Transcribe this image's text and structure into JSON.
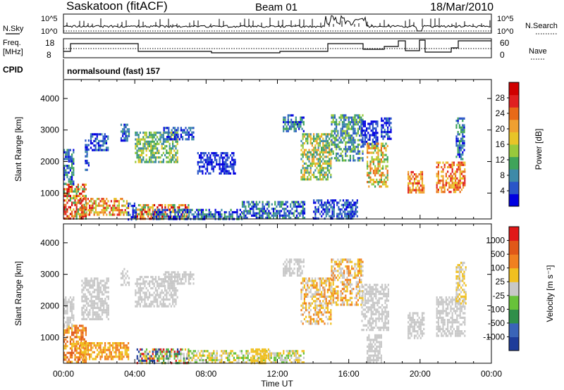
{
  "header": {
    "station": "Saskatoon (fitACF)",
    "beam": "Beam 01",
    "date": "18/Mar/2010"
  },
  "status_panels": {
    "nsky_label": "N.Sky",
    "nsearch_label": "N.Search",
    "noise_ticks": [
      "10^5",
      "10^0"
    ],
    "freq_label_1": "Freq.",
    "freq_label_2": "[MHz]",
    "freq_ticks": [
      "18",
      "8"
    ],
    "nave_label": "Nave",
    "nave_ticks": [
      "60",
      "0"
    ],
    "cpid_label": "CPID",
    "cpid_value": "normalsound (fast) 157"
  },
  "chart_data": [
    {
      "type": "heatmap",
      "title": "Power",
      "ylabel": "Slant Range [km]",
      "xlabel": "",
      "ylim": [
        180,
        4600
      ],
      "yticks": [
        1000,
        2000,
        3000,
        4000
      ],
      "xlim_hours": [
        0,
        24
      ],
      "xticks": [
        "00:00",
        "04:00",
        "08:00",
        "12:00",
        "16:00",
        "20:00",
        "00:00"
      ],
      "colorbar": {
        "label": "Power [dB]",
        "ticks": [
          "28",
          "24",
          "20",
          "16",
          "12",
          "8",
          "4"
        ],
        "colors": [
          "#0000e0",
          "#2a55c8",
          "#3e8aa8",
          "#3fa45a",
          "#98c93c",
          "#e8c428",
          "#f0a030",
          "#e86a18",
          "#e02020",
          "#d00000"
        ]
      },
      "regions": [
        {
          "t0": 0.0,
          "t1": 1.25,
          "r0": 220,
          "r1": 1300,
          "cls": [
            3,
            5,
            7,
            8,
            9
          ]
        },
        {
          "t0": 0.0,
          "t1": 0.6,
          "r0": 1300,
          "r1": 2400,
          "cls": [
            0,
            1,
            2,
            3
          ]
        },
        {
          "t0": 0.9,
          "t1": 3.6,
          "r0": 300,
          "r1": 850,
          "cls": [
            4,
            5,
            6,
            7,
            8
          ]
        },
        {
          "t0": 1.2,
          "t1": 1.45,
          "r0": 1700,
          "r1": 2700,
          "cls": [
            0,
            1,
            2
          ]
        },
        {
          "t0": 1.5,
          "t1": 2.5,
          "r0": 2350,
          "r1": 2900,
          "cls": [
            0,
            1,
            2
          ]
        },
        {
          "t0": 3.2,
          "t1": 3.7,
          "r0": 2650,
          "r1": 3200,
          "cls": [
            0,
            1,
            2,
            3
          ]
        },
        {
          "t0": 3.6,
          "t1": 4.05,
          "r0": 180,
          "r1": 700,
          "cls": [
            0,
            1,
            2
          ]
        },
        {
          "t0": 4.0,
          "t1": 6.4,
          "r0": 2000,
          "r1": 2950,
          "cls": [
            2,
            3,
            4,
            5
          ]
        },
        {
          "t0": 5.6,
          "t1": 7.3,
          "r0": 2700,
          "r1": 3100,
          "cls": [
            0,
            1,
            2
          ]
        },
        {
          "t0": 4.1,
          "t1": 7.0,
          "r0": 180,
          "r1": 650,
          "cls": [
            3,
            5,
            6,
            7,
            8,
            9
          ]
        },
        {
          "t0": 5.0,
          "t1": 10.0,
          "r0": 180,
          "r1": 500,
          "cls": [
            0,
            1,
            2,
            3
          ]
        },
        {
          "t0": 7.5,
          "t1": 9.6,
          "r0": 1600,
          "r1": 2300,
          "cls": [
            0,
            1
          ]
        },
        {
          "t0": 10.0,
          "t1": 13.5,
          "r0": 180,
          "r1": 750,
          "cls": [
            0,
            1,
            2,
            3
          ]
        },
        {
          "t0": 12.3,
          "t1": 13.5,
          "r0": 2950,
          "r1": 3500,
          "cls": [
            0,
            1,
            2,
            3
          ]
        },
        {
          "t0": 13.3,
          "t1": 15.0,
          "r0": 1400,
          "r1": 2900,
          "cls": [
            2,
            3,
            4,
            5,
            6
          ]
        },
        {
          "t0": 14.0,
          "t1": 16.5,
          "r0": 180,
          "r1": 800,
          "cls": [
            0,
            1,
            2
          ]
        },
        {
          "t0": 15.0,
          "t1": 16.8,
          "r0": 2000,
          "r1": 3500,
          "cls": [
            1,
            2,
            3,
            4
          ]
        },
        {
          "t0": 16.7,
          "t1": 17.6,
          "r0": 2500,
          "r1": 3300,
          "cls": [
            0,
            1
          ]
        },
        {
          "t0": 17.0,
          "t1": 18.2,
          "r0": 1200,
          "r1": 2600,
          "cls": [
            3,
            4,
            5,
            6,
            7
          ]
        },
        {
          "t0": 17.8,
          "t1": 18.4,
          "r0": 2700,
          "r1": 3400,
          "cls": [
            0,
            1,
            2
          ]
        },
        {
          "t0": 19.3,
          "t1": 20.2,
          "r0": 1000,
          "r1": 1700,
          "cls": [
            5,
            6,
            7,
            8
          ]
        },
        {
          "t0": 20.9,
          "t1": 22.5,
          "r0": 1050,
          "r1": 2000,
          "cls": [
            5,
            6,
            7,
            8
          ]
        },
        {
          "t0": 22.0,
          "t1": 22.5,
          "r0": 2100,
          "r1": 3400,
          "cls": [
            0,
            1,
            2,
            3
          ]
        }
      ]
    },
    {
      "type": "heatmap",
      "title": "Velocity",
      "ylabel": "Slant Range [km]",
      "xlabel": "Time UT",
      "ylim": [
        180,
        4600
      ],
      "yticks": [
        1000,
        2000,
        3000,
        4000
      ],
      "xlim_hours": [
        0,
        24
      ],
      "xticks": [
        "00:00",
        "04:00",
        "08:00",
        "12:00",
        "16:00",
        "20:00",
        "00:00"
      ],
      "colorbar": {
        "label": "Velocity [m s⁻¹]",
        "ticks": [
          "1000",
          "500",
          "100",
          "25",
          "-25",
          "-100",
          "-500",
          "-1000"
        ],
        "colors": [
          "#1e3c9a",
          "#3a64b8",
          "#2f8f4a",
          "#68c23a",
          "#c8c8c8",
          "#f0c020",
          "#f08020",
          "#e05818",
          "#e01818"
        ]
      },
      "regions": [
        {
          "t0": 0.0,
          "t1": 1.3,
          "r0": 220,
          "r1": 1400,
          "cls": [
            5,
            6,
            7
          ]
        },
        {
          "t0": 0.9,
          "t1": 3.6,
          "r0": 300,
          "r1": 850,
          "cls": [
            5,
            6
          ]
        },
        {
          "t0": 0.0,
          "t1": 0.6,
          "r0": 1300,
          "r1": 2300,
          "cls": [
            4
          ]
        },
        {
          "t0": 1.0,
          "t1": 2.5,
          "r0": 1600,
          "r1": 2900,
          "cls": [
            4
          ]
        },
        {
          "t0": 3.2,
          "t1": 3.7,
          "r0": 2650,
          "r1": 3200,
          "cls": [
            4
          ]
        },
        {
          "t0": 4.0,
          "t1": 6.4,
          "r0": 2000,
          "r1": 2950,
          "cls": [
            4
          ]
        },
        {
          "t0": 5.6,
          "t1": 7.3,
          "r0": 2700,
          "r1": 3100,
          "cls": [
            4
          ]
        },
        {
          "t0": 4.1,
          "t1": 7.0,
          "r0": 180,
          "r1": 650,
          "cls": [
            2,
            3,
            4,
            5,
            8,
            0
          ]
        },
        {
          "t0": 7.0,
          "t1": 13.5,
          "r0": 180,
          "r1": 600,
          "cls": [
            3,
            4,
            5
          ]
        },
        {
          "t0": 10.5,
          "t1": 11.5,
          "r0": 180,
          "r1": 650,
          "cls": [
            5
          ]
        },
        {
          "t0": 12.3,
          "t1": 13.5,
          "r0": 2950,
          "r1": 3500,
          "cls": [
            4
          ]
        },
        {
          "t0": 13.3,
          "t1": 15.0,
          "r0": 1400,
          "r1": 2900,
          "cls": [
            4,
            5,
            6
          ]
        },
        {
          "t0": 15.0,
          "t1": 16.8,
          "r0": 2000,
          "r1": 3500,
          "cls": [
            4,
            5,
            6
          ]
        },
        {
          "t0": 16.7,
          "t1": 18.2,
          "r0": 1200,
          "r1": 2700,
          "cls": [
            4
          ]
        },
        {
          "t0": 17.0,
          "t1": 17.8,
          "r0": 180,
          "r1": 1100,
          "cls": [
            4
          ]
        },
        {
          "t0": 19.3,
          "t1": 20.2,
          "r0": 1000,
          "r1": 1800,
          "cls": [
            4
          ]
        },
        {
          "t0": 20.9,
          "t1": 22.5,
          "r0": 1050,
          "r1": 2300,
          "cls": [
            4
          ]
        },
        {
          "t0": 22.0,
          "t1": 22.6,
          "r0": 2100,
          "r1": 3400,
          "cls": [
            4,
            5
          ]
        }
      ]
    }
  ]
}
